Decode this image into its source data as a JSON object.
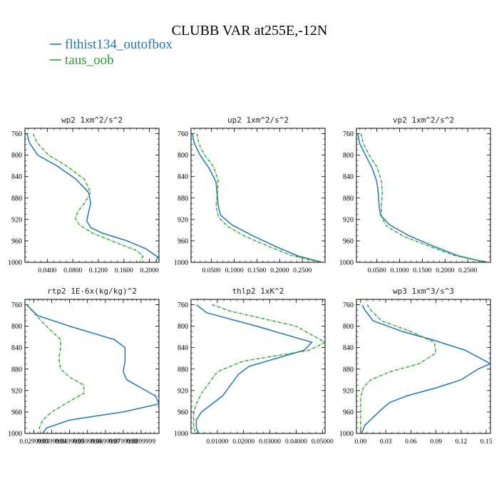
{
  "figure_title": "CLUBB VAR at255E,-12N",
  "legend": [
    {
      "label": "flthist134_outofbox",
      "color": "#1f77b4"
    },
    {
      "label": "taus_oob",
      "color": "#2ca02c"
    }
  ],
  "chart_data": [
    {
      "type": "line",
      "title": "wp2  1xm^2/s^2",
      "xlim": [
        0.005,
        0.215
      ],
      "ylim": [
        1000,
        750
      ],
      "yticks": [
        760,
        800,
        840,
        880,
        920,
        960,
        1000
      ],
      "xticks": [
        0.04,
        0.08,
        0.12,
        0.16,
        0.2
      ],
      "xtick_labels": [
        "0.0400",
        "0.0800",
        "0.1200",
        "0.1600",
        "0.2000"
      ],
      "series": [
        {
          "name": "flthist134_outofbox",
          "color": "#1f77b4",
          "style": "solid",
          "x": [
            0.008,
            0.012,
            0.025,
            0.055,
            0.085,
            0.105,
            0.108,
            0.104,
            0.102,
            0.108,
            0.125,
            0.165,
            0.195,
            0.213,
            0.21
          ],
          "y": [
            760,
            777,
            800,
            820,
            845,
            870,
            890,
            910,
            923,
            935,
            945,
            960,
            975,
            990,
            1000
          ]
        },
        {
          "name": "taus_oob",
          "color": "#2ca02c",
          "style": "dashed",
          "x": [
            0.018,
            0.024,
            0.042,
            0.07,
            0.098,
            0.108,
            0.098,
            0.088,
            0.084,
            0.09,
            0.11,
            0.145,
            0.18,
            0.19,
            0.185
          ],
          "y": [
            760,
            777,
            800,
            820,
            845,
            870,
            890,
            905,
            918,
            930,
            945,
            962,
            978,
            988,
            1000
          ]
        }
      ]
    },
    {
      "type": "line",
      "title": "up2  1xm^2/s^2",
      "xlim": [
        0.005,
        0.3
      ],
      "ylim": [
        1000,
        750
      ],
      "yticks": [
        760,
        800,
        840,
        880,
        920,
        960,
        1000
      ],
      "xticks": [
        0.05,
        0.1,
        0.15,
        0.2,
        0.25
      ],
      "xtick_labels": [
        "0.0500",
        "0.1000",
        "0.1500",
        "0.2000",
        "0.2500"
      ],
      "series": [
        {
          "name": "flthist134_outofbox",
          "color": "#1f77b4",
          "style": "solid",
          "x": [
            0.008,
            0.012,
            0.025,
            0.045,
            0.06,
            0.062,
            0.065,
            0.07,
            0.095,
            0.14,
            0.19,
            0.24,
            0.28,
            0.295
          ],
          "y": [
            760,
            778,
            800,
            825,
            850,
            870,
            895,
            912,
            930,
            950,
            970,
            988,
            997,
            1000
          ]
        },
        {
          "name": "taus_oob",
          "color": "#2ca02c",
          "style": "dashed",
          "x": [
            0.018,
            0.022,
            0.035,
            0.055,
            0.065,
            0.063,
            0.06,
            0.065,
            0.085,
            0.125,
            0.175,
            0.225,
            0.27,
            0.295
          ],
          "y": [
            760,
            778,
            800,
            822,
            848,
            870,
            895,
            915,
            933,
            952,
            970,
            987,
            996,
            1000
          ]
        }
      ]
    },
    {
      "type": "line",
      "title": "vp2  1xm^2/s^2",
      "xlim": [
        0.005,
        0.3
      ],
      "ylim": [
        1000,
        750
      ],
      "yticks": [
        760,
        800,
        840,
        880,
        920,
        960,
        1000
      ],
      "xticks": [
        0.05,
        0.1,
        0.15,
        0.2,
        0.25
      ],
      "xtick_labels": [
        "0.0500",
        "0.1000",
        "0.1500",
        "0.2000",
        "0.2500"
      ],
      "series": [
        {
          "name": "flthist134_outofbox",
          "color": "#1f77b4",
          "style": "solid",
          "x": [
            0.008,
            0.012,
            0.025,
            0.04,
            0.05,
            0.053,
            0.055,
            0.058,
            0.078,
            0.12,
            0.175,
            0.23,
            0.275,
            0.295
          ],
          "y": [
            760,
            778,
            800,
            825,
            850,
            870,
            895,
            912,
            930,
            950,
            970,
            988,
            997,
            1000
          ]
        },
        {
          "name": "taus_oob",
          "color": "#2ca02c",
          "style": "dashed",
          "x": [
            0.015,
            0.02,
            0.033,
            0.05,
            0.06,
            0.062,
            0.06,
            0.06,
            0.072,
            0.11,
            0.165,
            0.22,
            0.27,
            0.295
          ],
          "y": [
            760,
            778,
            800,
            822,
            848,
            870,
            895,
            915,
            933,
            952,
            970,
            987,
            996,
            1000
          ]
        }
      ]
    },
    {
      "type": "line",
      "title": "rtp2  1E-6x(kg/kg)^2",
      "xlim": [
        0.025,
        0.1
      ],
      "ylim": [
        1000,
        750
      ],
      "yticks": [
        760,
        800,
        840,
        880,
        920,
        960,
        1000
      ],
      "xticks": [
        0.03,
        0.04,
        0.05,
        0.06,
        0.07,
        0.08,
        0.09
      ],
      "xtick_labels": [
        "0.0299999",
        "0.0399999",
        "0.0499999",
        "0.0599999",
        "0.0699999",
        "0.0799999",
        "0.0899999"
      ],
      "series": [
        {
          "name": "flthist134_outofbox",
          "color": "#1f77b4",
          "style": "solid",
          "x": [
            0.026,
            0.032,
            0.05,
            0.075,
            0.081,
            0.081,
            0.08,
            0.082,
            0.09,
            0.098,
            0.1,
            0.08,
            0.05,
            0.037,
            0.035
          ],
          "y": [
            760,
            780,
            800,
            825,
            840,
            865,
            885,
            900,
            915,
            930,
            945,
            960,
            975,
            990,
            1000
          ]
        },
        {
          "name": "taus_oob",
          "color": "#2ca02c",
          "style": "dashed",
          "x": [
            0.026,
            0.03,
            0.037,
            0.045,
            0.045,
            0.044,
            0.045,
            0.05,
            0.058,
            0.058,
            0.05,
            0.04,
            0.035,
            0.033,
            0.034
          ],
          "y": [
            760,
            775,
            800,
            825,
            840,
            860,
            880,
            895,
            910,
            925,
            940,
            960,
            975,
            990,
            1000
          ]
        }
      ]
    },
    {
      "type": "line",
      "title": "thlp2  1xK^2",
      "xlim": [
        0,
        0.051
      ],
      "ylim": [
        1000,
        750
      ],
      "yticks": [
        760,
        800,
        840,
        880,
        920,
        960,
        1000
      ],
      "xticks": [
        0.01,
        0.02,
        0.03,
        0.04,
        0.05
      ],
      "xtick_labels": [
        "0.01000",
        "0.02000",
        "0.03000",
        "0.04000",
        "0.05000"
      ],
      "series": [
        {
          "name": "flthist134_outofbox",
          "color": "#1f77b4",
          "style": "solid",
          "x": [
            0.002,
            0.006,
            0.025,
            0.046,
            0.043,
            0.022,
            0.018,
            0.015,
            0.012,
            0.008,
            0.004,
            0.002,
            0.002,
            0.003
          ],
          "y": [
            760,
            775,
            800,
            830,
            845,
            875,
            890,
            910,
            930,
            945,
            960,
            975,
            990,
            1000
          ]
        },
        {
          "name": "taus_oob",
          "color": "#2ca02c",
          "style": "dashed",
          "x": [
            0.008,
            0.015,
            0.04,
            0.051,
            0.045,
            0.02,
            0.01,
            0.007,
            0.004,
            0.002,
            0.001,
            0.001,
            0.001,
            0.002
          ],
          "y": [
            760,
            772,
            800,
            830,
            845,
            865,
            885,
            905,
            925,
            945,
            960,
            975,
            990,
            1000
          ]
        }
      ]
    },
    {
      "type": "line",
      "title": "wp3  1xm^3/s^3",
      "xlim": [
        -0.005,
        0.155
      ],
      "ylim": [
        1000,
        750
      ],
      "yticks": [
        760,
        800,
        840,
        880,
        920,
        960,
        1000
      ],
      "xticks": [
        0,
        0.03,
        0.06,
        0.09,
        0.12,
        0.15
      ],
      "xtick_labels": [
        "0.00",
        "0.03",
        "0.06",
        "0.09",
        "0.12",
        "0.15"
      ],
      "series": [
        {
          "name": "flthist134_outofbox",
          "color": "#1f77b4",
          "style": "solid",
          "x": [
            0.002,
            0.005,
            0.015,
            0.05,
            0.085,
            0.125,
            0.155,
            0.14,
            0.12,
            0.09,
            0.055,
            0.035,
            0.025,
            0.015,
            0.005,
            0.001
          ],
          "y": [
            760,
            770,
            790,
            810,
            825,
            845,
            870,
            880,
            900,
            915,
            930,
            942,
            955,
            970,
            985,
            1000
          ]
        },
        {
          "name": "taus_oob",
          "color": "#2ca02c",
          "style": "dashed",
          "x": [
            0.008,
            0.012,
            0.025,
            0.06,
            0.088,
            0.09,
            0.07,
            0.035,
            0.012,
            0.003,
            0.0,
            0.0,
            0.0,
            0.0
          ],
          "y": [
            760,
            770,
            790,
            810,
            830,
            850,
            870,
            885,
            900,
            915,
            935,
            955,
            975,
            1000
          ]
        }
      ]
    }
  ]
}
